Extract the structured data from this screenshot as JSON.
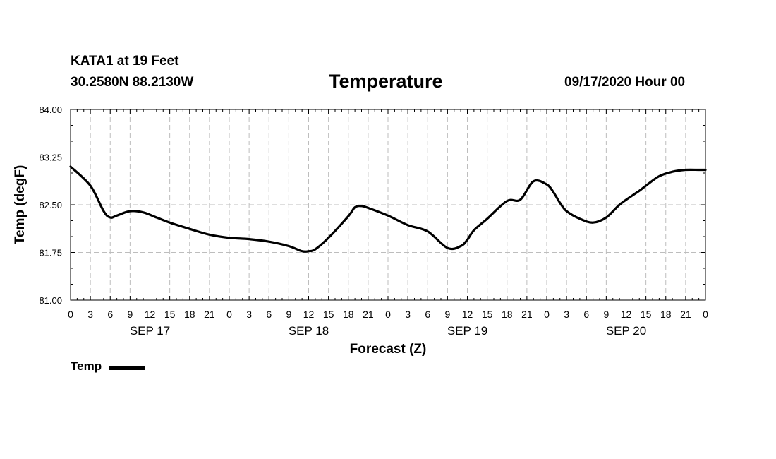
{
  "header": {
    "station": "KATA1 at 19 Feet",
    "coords": "30.2580N 88.2130W",
    "title": "Temperature",
    "run": "09/17/2020 Hour 00"
  },
  "legend": {
    "label": "Temp",
    "color": "#000000"
  },
  "chart_data": {
    "type": "line",
    "title": "Temperature",
    "xlabel": "Forecast (Z)",
    "ylabel": "Temp (degF)",
    "xlim": [
      0,
      96
    ],
    "ylim": [
      81.0,
      84.0
    ],
    "yticks": [
      "81.00",
      "81.75",
      "82.50",
      "83.25",
      "84.00"
    ],
    "xtick_labels": [
      "0",
      "3",
      "6",
      "9",
      "12",
      "15",
      "18",
      "21",
      "0",
      "3",
      "6",
      "9",
      "12",
      "15",
      "18",
      "21",
      "0",
      "3",
      "6",
      "9",
      "12",
      "15",
      "18",
      "21",
      "0",
      "3",
      "6",
      "9",
      "12",
      "15",
      "18",
      "21",
      "0"
    ],
    "day_labels": [
      {
        "hour": 12,
        "label": "SEP 17"
      },
      {
        "hour": 36,
        "label": "SEP 18"
      },
      {
        "hour": 60,
        "label": "SEP 19"
      },
      {
        "hour": 84,
        "label": "SEP 20"
      }
    ],
    "grid": true,
    "series": [
      {
        "name": "Temp",
        "color": "#000000",
        "x": [
          0,
          3,
          5,
          6,
          7,
          9,
          11,
          13,
          15,
          18,
          21,
          24,
          27,
          30,
          33,
          35,
          36,
          37,
          39,
          42,
          43,
          44,
          45,
          48,
          51,
          54,
          57,
          59,
          60,
          61,
          63,
          66,
          68,
          70,
          72,
          73,
          74,
          75,
          77,
          79,
          81,
          83,
          85,
          86,
          87,
          89,
          91,
          93,
          95,
          96
        ],
        "values": [
          83.1,
          82.8,
          82.4,
          82.3,
          82.33,
          82.4,
          82.38,
          82.3,
          82.22,
          82.12,
          82.03,
          81.98,
          81.96,
          81.92,
          81.85,
          81.77,
          81.77,
          81.8,
          81.98,
          82.32,
          82.46,
          82.48,
          82.45,
          82.33,
          82.18,
          82.08,
          81.82,
          81.85,
          81.95,
          82.1,
          82.28,
          82.56,
          82.58,
          82.87,
          82.82,
          82.7,
          82.53,
          82.4,
          82.28,
          82.22,
          82.3,
          82.5,
          82.65,
          82.72,
          82.8,
          82.95,
          83.02,
          83.05,
          83.05,
          83.05
        ]
      }
    ]
  }
}
